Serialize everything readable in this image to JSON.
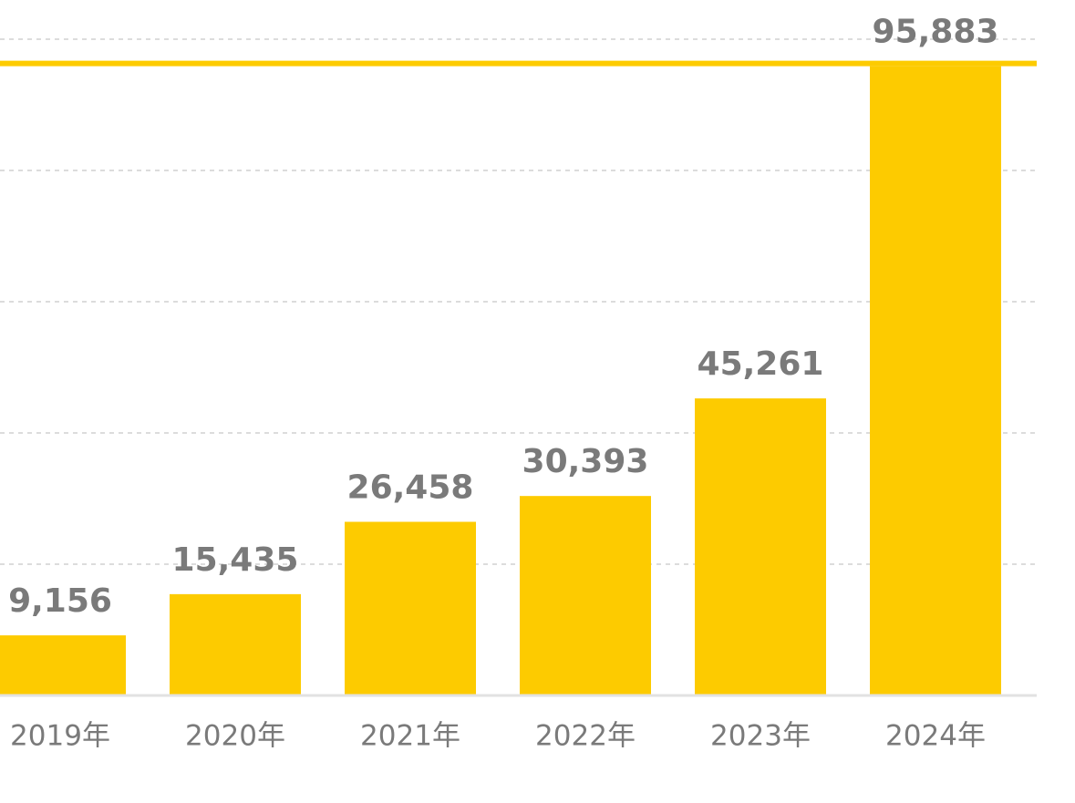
{
  "chart_data": {
    "type": "bar",
    "categories": [
      "2019年",
      "2020年",
      "2021年",
      "2022年",
      "2023年",
      "2024年"
    ],
    "values": [
      9156,
      15435,
      26458,
      30393,
      45261,
      95883
    ],
    "value_labels": [
      "9,156",
      "15,435",
      "26,458",
      "30,393",
      "45,261",
      "95,883"
    ],
    "color": "#fdcb00",
    "ylim": [
      0,
      100000
    ],
    "yticks": [
      0,
      20000,
      40000,
      60000,
      80000,
      100000
    ],
    "grid": true
  }
}
